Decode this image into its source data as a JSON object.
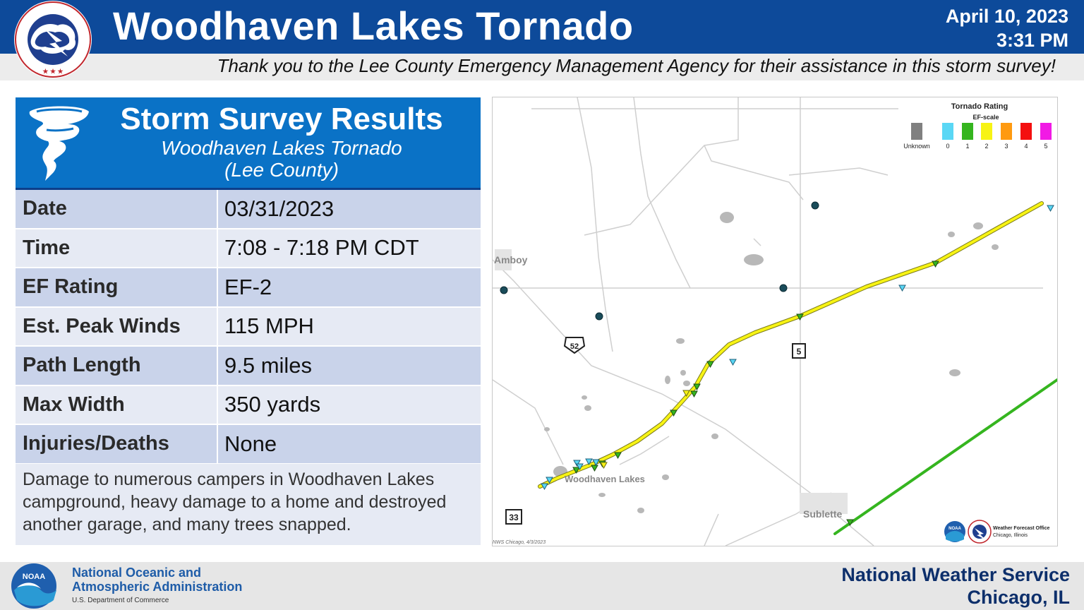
{
  "header": {
    "title": "Woodhaven Lakes Tornado",
    "date": "April 10, 2023",
    "time": "3:31 PM",
    "logo_text": "NATIONAL WEATHER SERVICE",
    "thanks": "Thank you to the Lee County Emergency Management Agency for their assistance in this storm survey!"
  },
  "panel": {
    "title": "Storm Survey Results",
    "subtitle": "Woodhaven Lakes Tornado",
    "county": "(Lee County)",
    "rows": [
      {
        "label": "Date",
        "value": "03/31/2023"
      },
      {
        "label": "Time",
        "value": "7:08 - 7:18 PM CDT"
      },
      {
        "label": "EF Rating",
        "value": "EF-2"
      },
      {
        "label": "Est. Peak Winds",
        "value": "115 MPH"
      },
      {
        "label": "Path Length",
        "value": "9.5 miles"
      },
      {
        "label": "Max Width",
        "value": "350 yards"
      },
      {
        "label": "Injuries/Deaths",
        "value": "None"
      }
    ],
    "description": "Damage to numerous campers in Woodhaven Lakes campground, heavy damage to a home and destroyed another garage, and many trees snapped."
  },
  "map": {
    "places": [
      "Amboy",
      "Woodhaven Lakes",
      "Sublette"
    ],
    "routes": [
      "52",
      "5",
      "33"
    ],
    "legend": {
      "title": "Tornado Rating",
      "subtitle": "EF-scale",
      "items": [
        {
          "label": "Unknown",
          "color": "#808080"
        },
        {
          "label": "0",
          "color": "#5ad7f5"
        },
        {
          "label": "1",
          "color": "#35b51f"
        },
        {
          "label": "2",
          "color": "#f7f314"
        },
        {
          "label": "3",
          "color": "#ff9a10"
        },
        {
          "label": "4",
          "color": "#f40f0f"
        },
        {
          "label": "5",
          "color": "#f11ae5"
        }
      ]
    },
    "credit": "NWS Chicago, 4/3/2023",
    "office_line1": "Weather Forecast Office",
    "office_line2": "Chicago, Illinois",
    "noaa_badge": "NOAA"
  },
  "footer": {
    "noaa_line1": "National Oceanic and",
    "noaa_line2": "Atmospheric Administration",
    "noaa_line3": "U.S. Department of Commerce",
    "noaa_logo_text": "NOAA",
    "nws_line1": "National Weather Service",
    "nws_line2": "Chicago, IL"
  }
}
